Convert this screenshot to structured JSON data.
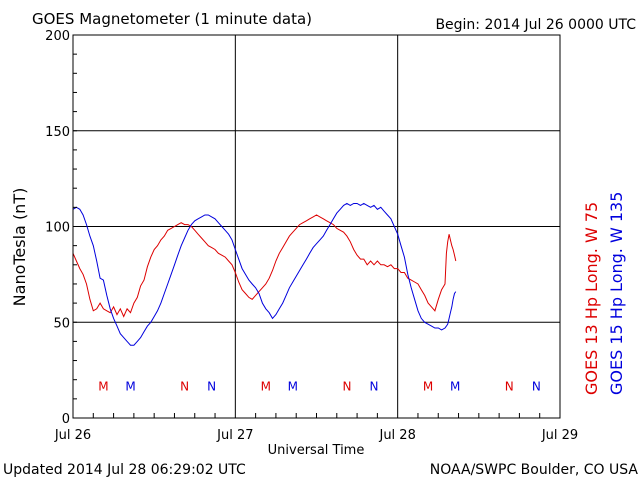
{
  "chart_data": {
    "type": "line",
    "title": "GOES Magnetometer (1 minute data)",
    "begin_label": "Begin:  2014 Jul 26 0000 UTC",
    "xlabel": "Universal Time",
    "ylabel": "NanoTesla (nT)",
    "xlim": [
      0,
      72
    ],
    "ylim": [
      0,
      200
    ],
    "y_ticks": [
      0,
      50,
      100,
      150,
      200
    ],
    "x_ticks": [
      {
        "x": 0,
        "label": "Jul 26"
      },
      {
        "x": 24,
        "label": "Jul 27"
      },
      {
        "x": 48,
        "label": "Jul 28"
      },
      {
        "x": 72,
        "label": "Jul 29"
      }
    ],
    "grid": true,
    "series": [
      {
        "name": "GOES 13 Hp  Long. W 75",
        "color": "#dd0000",
        "x": [
          0,
          0.5,
          1,
          1.5,
          2,
          2.5,
          3,
          3.5,
          4,
          4.5,
          5,
          5.5,
          6,
          6.5,
          7,
          7.5,
          8,
          8.5,
          9,
          9.5,
          10,
          10.5,
          11,
          11.5,
          12,
          12.5,
          13,
          13.5,
          14,
          14.5,
          15,
          15.5,
          16,
          16.5,
          17,
          17.5,
          18,
          18.5,
          19,
          19.5,
          20,
          20.5,
          21,
          21.5,
          22,
          22.5,
          23,
          23.5,
          24,
          24.5,
          25,
          25.5,
          26,
          26.5,
          27,
          27.5,
          28,
          28.5,
          29,
          29.5,
          30,
          30.5,
          31,
          31.5,
          32,
          32.5,
          33,
          33.5,
          34,
          34.5,
          35,
          35.5,
          36,
          36.5,
          37,
          37.5,
          38,
          38.5,
          39,
          39.5,
          40,
          40.5,
          41,
          41.5,
          42,
          42.5,
          43,
          43.5,
          44,
          44.5,
          45,
          45.5,
          46,
          46.5,
          47,
          47.5,
          48,
          48.5,
          49,
          49.5,
          50,
          50.5,
          51,
          51.5,
          52,
          52.5,
          53,
          53.5,
          54,
          54.5,
          55,
          55.2,
          55.4,
          55.6,
          55.8,
          56,
          56.2,
          56.4,
          56.6
        ],
        "values": [
          86,
          82,
          78,
          75,
          70,
          62,
          56,
          57,
          60,
          57,
          56,
          55,
          58,
          54,
          57,
          53,
          57,
          55,
          60,
          63,
          69,
          72,
          79,
          84,
          88,
          90,
          93,
          95,
          98,
          99,
          100,
          101,
          102,
          101,
          101,
          100,
          98,
          96,
          94,
          92,
          90,
          89,
          88,
          86,
          85,
          84,
          82,
          80,
          76,
          71,
          67,
          65,
          63,
          62,
          64,
          66,
          68,
          70,
          73,
          77,
          82,
          86,
          89,
          92,
          95,
          97,
          99,
          101,
          102,
          103,
          104,
          105,
          106,
          105,
          104,
          103,
          102,
          101,
          99,
          98,
          97,
          95,
          92,
          88,
          85,
          83,
          83,
          80,
          82,
          80,
          82,
          80,
          80,
          79,
          80,
          78,
          78,
          76,
          76,
          73,
          72,
          71,
          70,
          67,
          64,
          60,
          58,
          56,
          62,
          67,
          70,
          86,
          92,
          96,
          93,
          90,
          88,
          85,
          82
        ]
      },
      {
        "name": "GOES 15 Hp  Long. W 135",
        "color": "#0000dd",
        "x": [
          0,
          0.5,
          1,
          1.5,
          2,
          2.5,
          3,
          3.5,
          4,
          4.5,
          5,
          5.5,
          6,
          6.5,
          7,
          7.5,
          8,
          8.5,
          9,
          9.5,
          10,
          10.5,
          11,
          11.5,
          12,
          12.5,
          13,
          13.5,
          14,
          14.5,
          15,
          15.5,
          16,
          16.5,
          17,
          17.5,
          18,
          18.5,
          19,
          19.5,
          20,
          20.5,
          21,
          21.5,
          22,
          22.5,
          23,
          23.5,
          24,
          24.5,
          25,
          25.5,
          26,
          26.5,
          27,
          27.5,
          28,
          28.5,
          29,
          29.5,
          30,
          30.5,
          31,
          31.5,
          32,
          32.5,
          33,
          33.5,
          34,
          34.5,
          35,
          35.5,
          36,
          36.5,
          37,
          37.5,
          38,
          38.5,
          39,
          39.5,
          40,
          40.5,
          41,
          41.5,
          42,
          42.5,
          43,
          43.5,
          44,
          44.5,
          45,
          45.5,
          46,
          46.5,
          47,
          47.5,
          48,
          48.5,
          49,
          49.5,
          50,
          50.5,
          51,
          51.5,
          52,
          52.5,
          53,
          53.5,
          54,
          54.5,
          55,
          55.2,
          55.4,
          55.6,
          55.8,
          56,
          56.2,
          56.4,
          56.6
        ],
        "values": [
          109,
          110,
          109,
          106,
          101,
          95,
          90,
          82,
          73,
          72,
          64,
          57,
          52,
          48,
          44,
          42,
          40,
          38,
          38,
          40,
          42,
          45,
          48,
          50,
          53,
          56,
          60,
          65,
          70,
          75,
          80,
          85,
          90,
          94,
          98,
          101,
          103,
          104,
          105,
          106,
          106,
          105,
          104,
          102,
          100,
          98,
          96,
          93,
          88,
          83,
          78,
          75,
          72,
          70,
          68,
          65,
          60,
          57,
          55,
          52,
          54,
          57,
          60,
          64,
          68,
          71,
          74,
          77,
          80,
          83,
          86,
          89,
          91,
          93,
          95,
          98,
          101,
          104,
          107,
          109,
          111,
          112,
          111,
          112,
          112,
          111,
          112,
          111,
          110,
          111,
          109,
          110,
          108,
          106,
          104,
          100,
          96,
          90,
          84,
          75,
          68,
          62,
          56,
          52,
          50,
          49,
          48,
          47,
          47,
          46,
          47,
          48,
          49,
          52,
          55,
          58,
          62,
          65,
          66
        ]
      }
    ],
    "markers": [
      {
        "x": 4.5,
        "label": "M",
        "color": "#dd0000"
      },
      {
        "x": 8.5,
        "label": "M",
        "color": "#0000dd"
      },
      {
        "x": 16.5,
        "label": "N",
        "color": "#dd0000"
      },
      {
        "x": 20.5,
        "label": "N",
        "color": "#0000dd"
      },
      {
        "x": 28.5,
        "label": "M",
        "color": "#dd0000"
      },
      {
        "x": 32.5,
        "label": "M",
        "color": "#0000dd"
      },
      {
        "x": 40.5,
        "label": "N",
        "color": "#dd0000"
      },
      {
        "x": 44.5,
        "label": "N",
        "color": "#0000dd"
      },
      {
        "x": 52.5,
        "label": "M",
        "color": "#dd0000"
      },
      {
        "x": 56.5,
        "label": "M",
        "color": "#0000dd"
      },
      {
        "x": 64.5,
        "label": "N",
        "color": "#dd0000"
      },
      {
        "x": 68.5,
        "label": "N",
        "color": "#0000dd"
      }
    ],
    "marker_y": 17
  },
  "footer": {
    "updated": "Updated 2014 Jul 28 06:29:02 UTC",
    "source": "NOAA/SWPC Boulder, CO USA"
  }
}
